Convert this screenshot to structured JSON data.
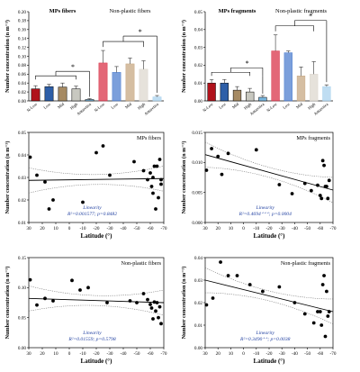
{
  "chart_data": [
    {
      "type": "bar",
      "title": "MPs fibers",
      "title2": "Non-plastic fibers",
      "ylabel": "Number concentration (n m⁻³)",
      "ylim": [
        0,
        0.2
      ],
      "yticks": [
        "0.00",
        "0.02",
        "0.04",
        "0.06",
        "0.08",
        "0.10",
        "0.12",
        "0.14",
        "0.16",
        "0.18",
        "0.20"
      ],
      "categories": [
        "N-Low",
        "Low",
        "Mid",
        "High",
        "Antarctica",
        "N-Low",
        "Low",
        "Mid",
        "High",
        "Antarctica"
      ],
      "values": [
        0.027,
        0.032,
        0.031,
        0.027,
        0.003,
        0.085,
        0.064,
        0.083,
        0.071,
        0.009
      ],
      "errors": [
        0.007,
        0.005,
        0.009,
        0.006,
        0.002,
        0.028,
        0.013,
        0.013,
        0.019,
        0.003
      ],
      "colors": [
        "#b0121b",
        "#2e5fa8",
        "#a68a63",
        "#c8c8c0",
        "#79b7e0",
        "#d9344a",
        "#4f7fcf",
        "#c7a883",
        "#ddd8cf",
        "#aad2ee"
      ],
      "sig": "*"
    },
    {
      "type": "bar",
      "title": "MPs fragments",
      "title2": "Non-plastic fragments",
      "ylabel": "Number concentration (n m⁻³)",
      "ylim": [
        0,
        0.05
      ],
      "yticks": [
        "0.00",
        "0.01",
        "0.02",
        "0.03",
        "0.04",
        "0.05"
      ],
      "categories": [
        "N-Low",
        "Low",
        "Mid",
        "High",
        "Antarctica",
        "N-Low",
        "Low",
        "Mid",
        "High",
        "Antarctica"
      ],
      "values": [
        0.01,
        0.01,
        0.006,
        0.005,
        0.002,
        0.028,
        0.027,
        0.014,
        0.015,
        0.008
      ],
      "errors": [
        0.002,
        0.002,
        0.002,
        0.002,
        0.001,
        0.009,
        0.001,
        0.005,
        0.007,
        0.001
      ],
      "colors": [
        "#b0121b",
        "#2e5fa8",
        "#a68a63",
        "#c8c8c0",
        "#79b7e0",
        "#d9344a",
        "#4f7fcf",
        "#c7a883",
        "#ddd8cf",
        "#aad2ee"
      ],
      "sig": "*"
    },
    {
      "type": "scatter",
      "title": "MPs fibers",
      "ylabel": "Number concentration (n m⁻³)",
      "xlabel": "Latitude (°)",
      "xlim": [
        30,
        -70
      ],
      "xticks": [
        "30",
        "20",
        "10",
        "0",
        "-10",
        "-20",
        "-30",
        "-40",
        "-50",
        "-60",
        "-70"
      ],
      "ylim": [
        0.01,
        0.05
      ],
      "yticks": [
        "0.01",
        "0.02",
        "0.03",
        "0.04",
        "0.05"
      ],
      "legend_title": "Linearity",
      "stats": "R²=0.001577; p=0.8482",
      "x": [
        29,
        24,
        18,
        15,
        12,
        -10,
        -20,
        -25,
        -30,
        -48,
        -55,
        -58,
        -60,
        -61,
        -62,
        -62,
        -63,
        -64,
        -65,
        -66,
        -67,
        -68,
        -68
      ],
      "y": [
        0.039,
        0.031,
        0.028,
        0.016,
        0.02,
        0.019,
        0.041,
        0.044,
        0.031,
        0.037,
        0.033,
        0.029,
        0.032,
        0.026,
        0.023,
        0.03,
        0.035,
        0.016,
        0.035,
        0.021,
        0.038,
        0.029,
        0.027
      ],
      "fit": [
        0.0287,
        0.0295
      ]
    },
    {
      "type": "scatter",
      "title": "MPs fragments",
      "ylabel": "Number concentration (n m⁻³)",
      "xlabel": "Latitude (°)",
      "xlim": [
        30,
        -70
      ],
      "xticks": [
        "30",
        "20",
        "10",
        "0",
        "-10",
        "-20",
        "-30",
        "-40",
        "-50",
        "-60",
        "-70"
      ],
      "ylim": [
        0.0,
        0.015
      ],
      "yticks": [
        "0.000",
        "0.005",
        "0.010",
        "0.015"
      ],
      "legend_title": "Linearity",
      "stats": "R²=0.4694⁺⁺⁺; p=0.0004",
      "x": [
        29,
        25,
        20,
        17,
        12,
        -10,
        -28,
        -38,
        -48,
        -53,
        -58,
        -60,
        -61,
        -62,
        -63,
        -64,
        -65,
        -66,
        -67
      ],
      "y": [
        0.0087,
        0.0123,
        0.011,
        0.008,
        0.0115,
        0.0121,
        0.0063,
        0.0048,
        0.0065,
        0.0053,
        0.0062,
        0.0045,
        0.004,
        0.0103,
        0.0095,
        0.006,
        0.006,
        0.004,
        0.007
      ],
      "fit": [
        0.0113,
        0.0054
      ]
    },
    {
      "type": "scatter",
      "title": "Non-plastic fibers",
      "ylabel": "Number concentration (n m⁻³)",
      "xlabel": "Latitude (°)",
      "xlim": [
        30,
        -70
      ],
      "xticks": [
        "30",
        "20",
        "10",
        "0",
        "-10",
        "-20",
        "-30",
        "-40",
        "-50",
        "-60",
        "-70"
      ],
      "ylim": [
        0.0,
        0.15
      ],
      "yticks": [
        "0.00",
        "0.05",
        "0.10",
        "0.15"
      ],
      "legend_title": "Linearity",
      "stats": "R²=0.01559; p=0.5798",
      "x": [
        29,
        24,
        18,
        12,
        -2,
        -8,
        -14,
        -28,
        -45,
        -50,
        -55,
        -58,
        -60,
        -61,
        -62,
        -63,
        -64,
        -65,
        -66,
        -67,
        -68
      ],
      "y": [
        0.113,
        0.071,
        0.082,
        0.078,
        0.112,
        0.096,
        0.1,
        0.075,
        0.078,
        0.075,
        0.09,
        0.08,
        0.072,
        0.066,
        0.048,
        0.076,
        0.061,
        0.075,
        0.05,
        0.068,
        0.04
      ],
      "fit": [
        0.082,
        0.075
      ]
    },
    {
      "type": "scatter",
      "title": "Non-plastic fragments",
      "ylabel": "Number concentration (n m⁻³)",
      "xlabel": "Latitude (°)",
      "xlim": [
        30,
        -70
      ],
      "xticks": [
        "30",
        "20",
        "10",
        "0",
        "-10",
        "-20",
        "-30",
        "-40",
        "-50",
        "-60",
        "-70"
      ],
      "ylim": [
        0.0,
        0.04
      ],
      "yticks": [
        "0.00",
        "0.01",
        "0.02",
        "0.03",
        "0.04"
      ],
      "legend_title": "Linearity",
      "stats": "R²=0.3490⁺⁺; p=0.0038",
      "x": [
        29,
        24,
        18,
        12,
        5,
        -5,
        -15,
        -28,
        -40,
        -48,
        -55,
        -58,
        -60,
        -61,
        -62,
        -63,
        -64,
        -65,
        -66,
        -67
      ],
      "y": [
        0.019,
        0.022,
        0.038,
        0.032,
        0.032,
        0.028,
        0.025,
        0.027,
        0.02,
        0.015,
        0.011,
        0.016,
        0.016,
        0.01,
        0.028,
        0.032,
        0.005,
        0.025,
        0.014,
        0.016
      ],
      "fit": [
        0.03,
        0.016
      ]
    }
  ]
}
